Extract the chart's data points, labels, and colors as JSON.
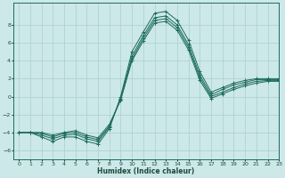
{
  "xlabel": "Humidex (Indice chaleur)",
  "bg_color": "#cce8e8",
  "line_color": "#1e6b5e",
  "grid_color": "#aacfcf",
  "xlim": [
    -0.5,
    23
  ],
  "ylim": [
    -7,
    10.5
  ],
  "xticks": [
    0,
    1,
    2,
    3,
    4,
    5,
    6,
    7,
    8,
    9,
    10,
    11,
    12,
    13,
    14,
    15,
    16,
    17,
    18,
    19,
    20,
    21,
    22,
    23
  ],
  "yticks": [
    -6,
    -4,
    -2,
    0,
    2,
    4,
    6,
    8
  ],
  "series": [
    {
      "x": [
        0,
        1,
        2,
        3,
        4,
        5,
        6,
        7,
        8,
        9,
        10,
        11,
        12,
        13,
        14,
        15,
        16,
        17,
        18,
        19,
        20,
        21,
        22,
        23
      ],
      "y": [
        -4,
        -4,
        -4.5,
        -5,
        -4.5,
        -4.5,
        -5,
        -5.3,
        -3.6,
        0.0,
        5.0,
        7.2,
        9.3,
        9.5,
        8.5,
        6.3,
        2.8,
        0.5,
        1.0,
        1.5,
        1.8,
        2.0,
        2.0,
        2.0
      ]
    },
    {
      "x": [
        0,
        1,
        2,
        3,
        4,
        5,
        6,
        7,
        8,
        9,
        10,
        11,
        12,
        13,
        14,
        15,
        16,
        17,
        18,
        19,
        20,
        21,
        22,
        23
      ],
      "y": [
        -4,
        -4,
        -4.3,
        -4.7,
        -4.3,
        -4.2,
        -4.7,
        -5.0,
        -3.4,
        -0.2,
        4.5,
        6.8,
        8.8,
        9.0,
        8.0,
        5.8,
        2.4,
        0.2,
        0.8,
        1.3,
        1.6,
        1.9,
        1.9,
        1.9
      ]
    },
    {
      "x": [
        0,
        1,
        2,
        3,
        4,
        5,
        6,
        7,
        8,
        9,
        10,
        11,
        12,
        13,
        14,
        15,
        16,
        17,
        18,
        19,
        20,
        21,
        22,
        23
      ],
      "y": [
        -4,
        -4,
        -4.1,
        -4.5,
        -4.1,
        -4.0,
        -4.5,
        -4.8,
        -3.3,
        -0.3,
        4.2,
        6.5,
        8.5,
        8.7,
        7.7,
        5.5,
        2.1,
        0.0,
        0.5,
        1.0,
        1.4,
        1.7,
        1.8,
        1.8
      ]
    },
    {
      "x": [
        0,
        1,
        2,
        3,
        4,
        5,
        6,
        7,
        8,
        9,
        10,
        11,
        12,
        13,
        14,
        15,
        16,
        17,
        18,
        19,
        20,
        21,
        22,
        23
      ],
      "y": [
        -4,
        -4,
        -4.0,
        -4.3,
        -4.0,
        -3.8,
        -4.3,
        -4.6,
        -3.1,
        -0.4,
        4.0,
        6.2,
        8.2,
        8.4,
        7.4,
        5.2,
        1.8,
        -0.2,
        0.3,
        0.8,
        1.2,
        1.5,
        1.7,
        1.7
      ]
    }
  ]
}
